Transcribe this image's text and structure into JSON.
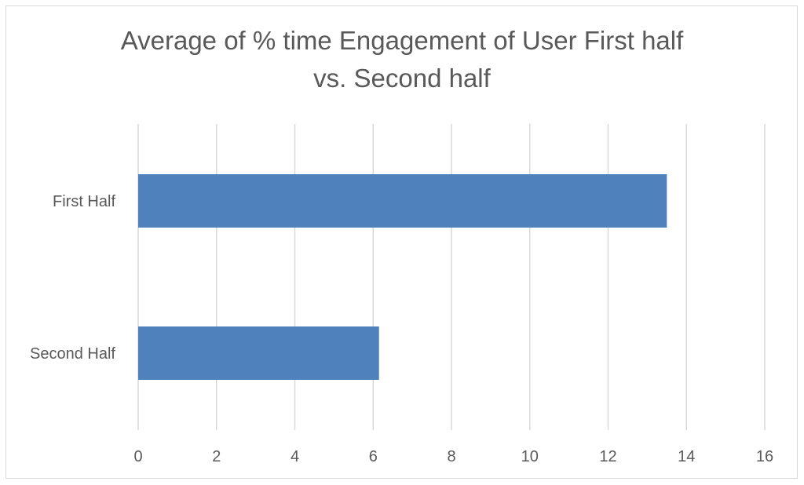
{
  "chart_data": {
    "type": "bar",
    "orientation": "horizontal",
    "title_lines": [
      "Average of % time Engagement of User First half",
      "vs. Second half"
    ],
    "categories": [
      "First Half",
      "Second Half"
    ],
    "values": [
      13.5,
      6.15
    ],
    "xlabel": "",
    "ylabel": "",
    "xlim": [
      0,
      16
    ],
    "xticks": [
      "0",
      "2",
      "4",
      "6",
      "8",
      "10",
      "12",
      "14",
      "16"
    ],
    "grid": true,
    "legend": "none",
    "bar_color": "#4f81bd",
    "grid_color": "#d9d9d9"
  }
}
